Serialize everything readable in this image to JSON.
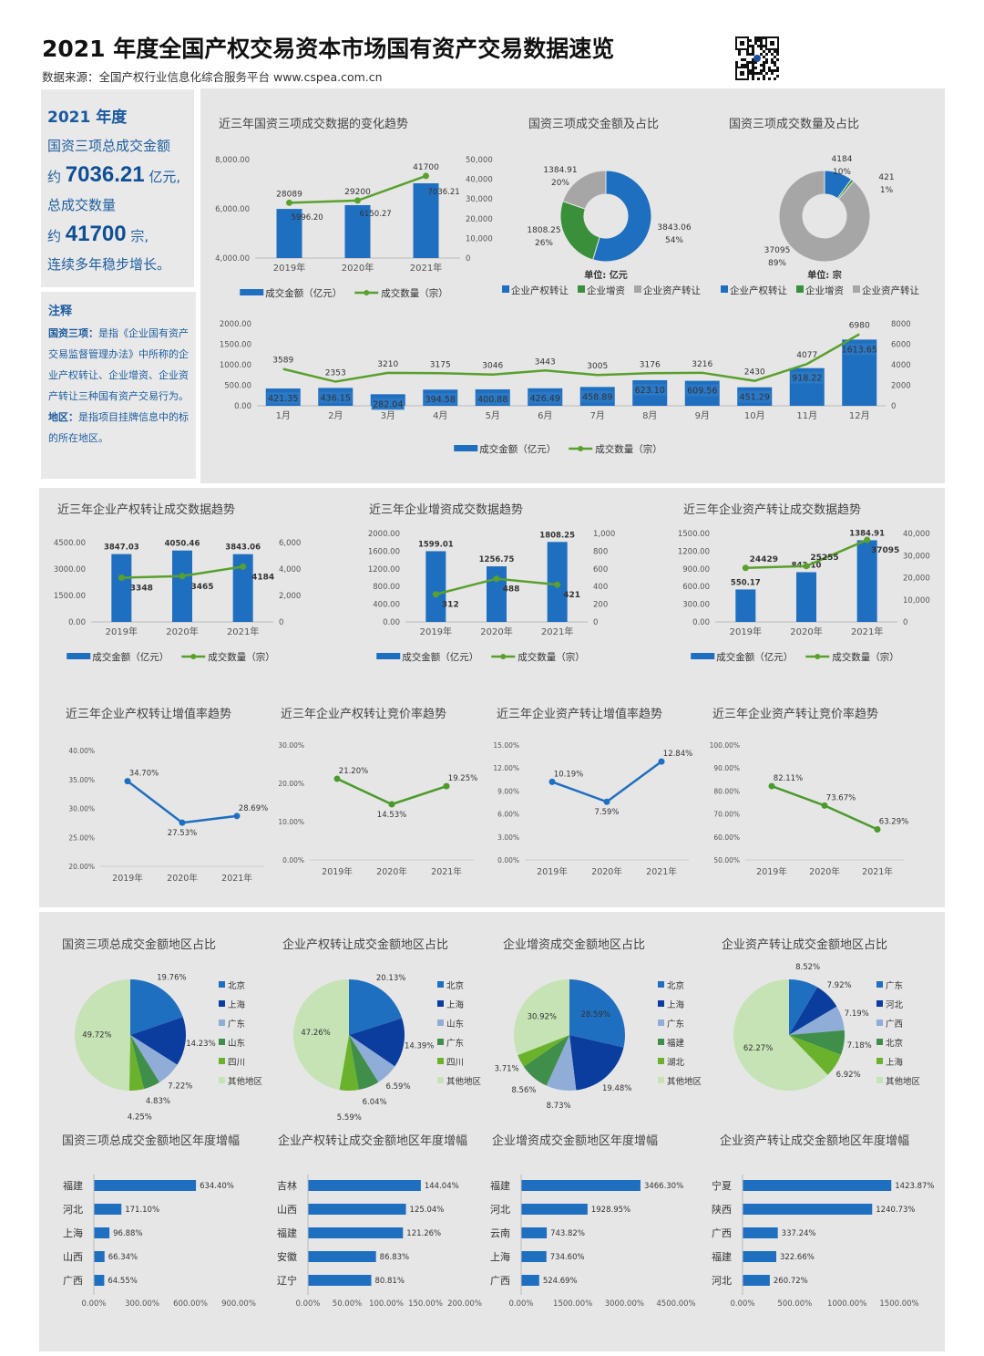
{
  "header": {
    "title": "2021 年度全国产权交易资本市场国有资产交易数据速览",
    "source": "数据来源：全国产权行业信息化综合服务平台 www.cspea.com.cn"
  },
  "summary": {
    "year": "2021 年度",
    "line1": "国资三项总成交金额",
    "amount_prefix": "约",
    "amount": "7036.21",
    "amount_unit": "亿元,",
    "line3": "总成交数量",
    "count_prefix": "约",
    "count": "41700",
    "count_unit": "宗,",
    "line5": "连续多年稳步增长。"
  },
  "notes": {
    "title": "注释",
    "term1": "国资三项：",
    "def1": "是指《企业国有资产交易监督管理办法》中所称的企业产权转让、企业增资、企业资产转让三种国有资产交易行为。",
    "term2": "地区：",
    "def2": "是指项目挂牌信息中的标的所在地区。"
  },
  "colors": {
    "bar_blue": "#1f6fc0",
    "line_green": "#5aa02c",
    "gray": "#a6a6a6",
    "green": "#3a8f3a",
    "panel": "#e6e6e6",
    "pie": [
      "#1f6fc0",
      "#0b3d9e",
      "#8fadd6",
      "#3f8f4a",
      "#6ab22c",
      "#c5e3b5"
    ]
  },
  "chart_data": [
    {
      "id": "three-year-trend",
      "type": "bar+line",
      "title": "近三年国资三项成交数据的变化趋势",
      "categories": [
        "2019年",
        "2020年",
        "2021年"
      ],
      "bar": {
        "name": "成交金额（亿元）",
        "values": [
          5996.2,
          6150.27,
          7036.21
        ],
        "ylim": [
          4000,
          8000
        ],
        "ticks": [
          "4,000.00",
          "6,000.00",
          "8,000.00"
        ]
      },
      "line": {
        "name": "成交数量（宗）",
        "values": [
          28089,
          29200,
          41700
        ],
        "ylim": [
          0,
          50000
        ],
        "ticks": [
          "0",
          "10,000",
          "20,000",
          "30,000",
          "40,000",
          "50,000"
        ]
      }
    },
    {
      "id": "amount-share",
      "type": "donut",
      "title": "国资三项成交金额及占比",
      "unit": "单位: 亿元",
      "labels": [
        "企业产权转让",
        "企业增资",
        "企业资产转让"
      ],
      "values": [
        3843.06,
        1808.25,
        1384.91
      ],
      "percents": [
        "54%",
        "26%",
        "20%"
      ]
    },
    {
      "id": "count-share",
      "type": "donut",
      "title": "国资三项成交数量及占比",
      "unit": "单位: 宗",
      "labels": [
        "企业产权转让",
        "企业增资",
        "企业资产转让"
      ],
      "values": [
        4184,
        421,
        37095
      ],
      "percents": [
        "10%",
        "1%",
        "89%"
      ]
    },
    {
      "id": "monthly",
      "type": "bar+line",
      "title": "",
      "categories": [
        "1月",
        "2月",
        "3月",
        "4月",
        "5月",
        "6月",
        "7月",
        "8月",
        "9月",
        "10月",
        "11月",
        "12月"
      ],
      "bar": {
        "name": "成交金额（亿元）",
        "values": [
          421.35,
          436.15,
          282.04,
          394.58,
          400.88,
          426.49,
          458.89,
          623.1,
          609.56,
          451.29,
          918.22,
          1613.65
        ],
        "ylim": [
          0,
          2000
        ],
        "ticks": [
          "0.00",
          "500.00",
          "1000.00",
          "1500.00",
          "2000.00"
        ]
      },
      "line": {
        "name": "成交数量（宗）",
        "values": [
          3589,
          2353,
          3210,
          3175,
          3046,
          3443,
          3005,
          3176,
          3216,
          2430,
          4077,
          6980
        ],
        "ylim": [
          0,
          8000
        ],
        "ticks": [
          "0",
          "2000",
          "4000",
          "6000",
          "8000"
        ]
      }
    },
    {
      "id": "equity-transfer-trend",
      "type": "bar+line",
      "title": "近三年企业产权转让成交数据趋势",
      "categories": [
        "2019年",
        "2020年",
        "2021年"
      ],
      "bar": {
        "name": "成交金额（亿元）",
        "values": [
          3847.03,
          4050.46,
          3843.06
        ],
        "ylim": [
          0,
          4500
        ],
        "ticks": [
          "0.00",
          "1500.00",
          "3000.00",
          "4500.00"
        ]
      },
      "line": {
        "name": "成交数量（宗）",
        "values": [
          3348,
          3465,
          4184
        ],
        "ylim": [
          0,
          6000
        ],
        "ticks": [
          "0",
          "2,000",
          "4,000",
          "6,000"
        ]
      }
    },
    {
      "id": "capital-increase-trend",
      "type": "bar+line",
      "title": "近三年企业增资成交数据趋势",
      "categories": [
        "2019年",
        "2020年",
        "2021年"
      ],
      "bar": {
        "name": "成交金额（亿元）",
        "values": [
          1599.01,
          1256.75,
          1808.25
        ],
        "ylim": [
          0,
          2000
        ],
        "ticks": [
          "0.00",
          "400.00",
          "800.00",
          "1200.00",
          "1600.00",
          "2000.00"
        ]
      },
      "line": {
        "name": "成交数量（宗）",
        "values": [
          312,
          488,
          421
        ],
        "ylim": [
          0,
          1000
        ],
        "ticks": [
          "0",
          "200",
          "400",
          "600",
          "800",
          "1,000"
        ]
      }
    },
    {
      "id": "asset-transfer-trend",
      "type": "bar+line",
      "title": "近三年企业资产转让成交数据趋势",
      "categories": [
        "2019年",
        "2020年",
        "2021年"
      ],
      "bar": {
        "name": "成交金额（亿元）",
        "values": [
          550.17,
          843.1,
          1384.91
        ],
        "ylim": [
          0,
          1500
        ],
        "ticks": [
          "0.00",
          "300.00",
          "600.00",
          "900.00",
          "1200.00",
          "1500.00"
        ]
      },
      "line": {
        "name": "成交数量（宗）",
        "values": [
          24429,
          25255,
          37095
        ],
        "ylim": [
          0,
          40000
        ],
        "ticks": [
          "0",
          "10,000",
          "20,000",
          "30,000",
          "40,000"
        ]
      }
    },
    {
      "id": "equity-appreciation",
      "type": "line",
      "title": "近三年企业产权转让增值率趋势",
      "color": "#1f6fc0",
      "categories": [
        "2019年",
        "2020年",
        "2021年"
      ],
      "values": [
        34.7,
        27.53,
        28.69
      ],
      "ylim": [
        20,
        40
      ],
      "ticks": [
        "20.00%",
        "25.00%",
        "30.00%",
        "35.00%",
        "40.00%"
      ]
    },
    {
      "id": "equity-bidding",
      "type": "line",
      "title": "近三年企业产权转让竞价率趋势",
      "color": "#4a9a2c",
      "categories": [
        "2019年",
        "2020年",
        "2021年"
      ],
      "values": [
        21.2,
        14.53,
        19.25
      ],
      "ylim": [
        0,
        30
      ],
      "ticks": [
        "0.00%",
        "10.00%",
        "20.00%",
        "30.00%"
      ]
    },
    {
      "id": "asset-appreciation",
      "type": "line",
      "title": "近三年企业资产转让增值率趋势",
      "color": "#1f6fc0",
      "categories": [
        "2019年",
        "2020年",
        "2021年"
      ],
      "values": [
        10.19,
        7.59,
        12.84
      ],
      "ylim": [
        0,
        15
      ],
      "ticks": [
        "0.00%",
        "3.00%",
        "6.00%",
        "9.00%",
        "12.00%",
        "15.00%"
      ]
    },
    {
      "id": "asset-bidding",
      "type": "line",
      "title": "近三年企业资产转让竞价率趋势",
      "color": "#4a9a2c",
      "categories": [
        "2019年",
        "2020年",
        "2021年"
      ],
      "values": [
        82.11,
        73.67,
        63.29
      ],
      "ylim": [
        50,
        100
      ],
      "ticks": [
        "50.00%",
        "60.00%",
        "70.00%",
        "80.00%",
        "90.00%",
        "100.00%"
      ]
    },
    {
      "id": "region-total",
      "type": "pie",
      "title": "国资三项总成交金额地区占比",
      "labels": [
        "北京",
        "上海",
        "广东",
        "山东",
        "四川",
        "其他地区"
      ],
      "values": [
        19.76,
        14.23,
        7.22,
        4.83,
        4.25,
        49.72
      ]
    },
    {
      "id": "region-equity",
      "type": "pie",
      "title": "企业产权转让成交金额地区占比",
      "labels": [
        "北京",
        "上海",
        "山东",
        "广东",
        "四川",
        "其他地区"
      ],
      "values": [
        20.13,
        14.39,
        6.59,
        6.04,
        5.59,
        47.26
      ]
    },
    {
      "id": "region-capital",
      "type": "pie",
      "title": "企业增资成交金额地区占比",
      "labels": [
        "北京",
        "上海",
        "广东",
        "福建",
        "湖北",
        "其他地区"
      ],
      "values": [
        28.59,
        19.48,
        8.73,
        8.56,
        3.71,
        30.92
      ]
    },
    {
      "id": "region-asset",
      "type": "pie",
      "title": "企业资产转让成交金额地区占比",
      "labels": [
        "广东",
        "河北",
        "广西",
        "北京",
        "上海",
        "其他地区"
      ],
      "values": [
        8.52,
        7.92,
        7.19,
        7.18,
        6.92,
        62.27
      ]
    },
    {
      "id": "growth-total",
      "type": "hbar",
      "title": "国资三项总成交金额地区年度增幅",
      "categories": [
        "福建",
        "河北",
        "上海",
        "山西",
        "广西"
      ],
      "values": [
        634.4,
        171.1,
        96.88,
        66.34,
        64.55
      ],
      "xlim": [
        0,
        900
      ],
      "ticks": [
        "0.00%",
        "300.00%",
        "600.00%",
        "900.00%"
      ]
    },
    {
      "id": "growth-equity",
      "type": "hbar",
      "title": "企业产权转让成交金额地区年度增幅",
      "categories": [
        "吉林",
        "山西",
        "福建",
        "安徽",
        "辽宁"
      ],
      "values": [
        144.04,
        125.04,
        121.26,
        86.83,
        80.81
      ],
      "xlim": [
        0,
        200
      ],
      "ticks": [
        "0.00%",
        "50.00%",
        "100.00%",
        "150.00%",
        "200.00%"
      ]
    },
    {
      "id": "growth-capital",
      "type": "hbar",
      "title": "企业增资成交金额地区年度增幅",
      "categories": [
        "福建",
        "河北",
        "云南",
        "上海",
        "广西"
      ],
      "values": [
        3466.3,
        1928.95,
        743.82,
        734.6,
        524.69
      ],
      "xlim": [
        0,
        4500
      ],
      "ticks": [
        "0.00%",
        "1500.00%",
        "3000.00%",
        "4500.00%"
      ]
    },
    {
      "id": "growth-asset",
      "type": "hbar",
      "title": "企业资产转让成交金额地区年度增幅",
      "categories": [
        "宁夏",
        "陕西",
        "广西",
        "福建",
        "河北"
      ],
      "values": [
        1423.87,
        1240.73,
        337.24,
        322.66,
        260.72
      ],
      "xlim": [
        0,
        1500
      ],
      "ticks": [
        "0.00%",
        "500.00%",
        "1000.00%",
        "1500.00%"
      ]
    }
  ]
}
